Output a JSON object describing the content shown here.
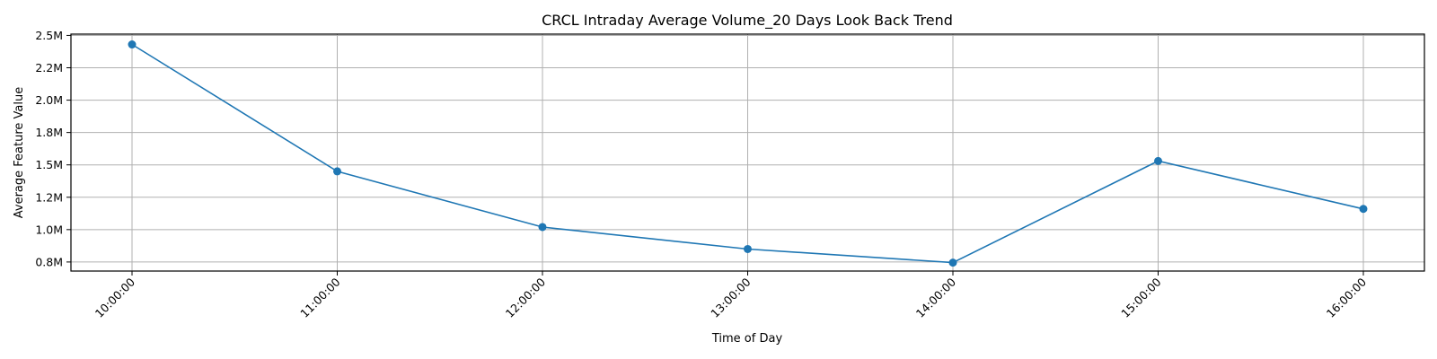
{
  "chart_data": {
    "type": "line",
    "title": "CRCL Intraday Average Volume_20 Days Look Back Trend",
    "xlabel": "Time of Day",
    "ylabel": "Average Feature Value",
    "categories": [
      "10:00:00",
      "11:00:00",
      "12:00:00",
      "13:00:00",
      "14:00:00",
      "15:00:00",
      "16:00:00"
    ],
    "series": [
      {
        "values": [
          2430000,
          1450000,
          1020000,
          850000,
          745000,
          1530000,
          1160000
        ],
        "color": "#1f77b4"
      }
    ],
    "ylim": [
      680000,
      2510000
    ],
    "yticks": [
      750000,
      1000000,
      1250000,
      1500000,
      1750000,
      2000000,
      2250000,
      2500000
    ],
    "ytick_labels": [
      "0.8M",
      "1.0M",
      "1.2M",
      "1.5M",
      "1.8M",
      "2.0M",
      "2.2M",
      "2.5M"
    ],
    "grid": true,
    "x_tick_rotation": 45
  }
}
